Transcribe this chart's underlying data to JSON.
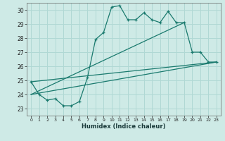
{
  "xlabel": "Humidex (Indice chaleur)",
  "bg_color": "#ceeae6",
  "grid_color": "#b0d8d4",
  "line_color": "#1a7a6e",
  "xlim": [
    -0.5,
    23.5
  ],
  "ylim": [
    22.5,
    30.5
  ],
  "xticks": [
    0,
    1,
    2,
    3,
    4,
    5,
    6,
    7,
    8,
    9,
    10,
    11,
    12,
    13,
    14,
    15,
    16,
    17,
    18,
    19,
    20,
    21,
    22,
    23
  ],
  "yticks": [
    23,
    24,
    25,
    26,
    27,
    28,
    29,
    30
  ],
  "series1_x": [
    0,
    1,
    2,
    3,
    4,
    5,
    6,
    7,
    8,
    9,
    10,
    11,
    12,
    13,
    14,
    15,
    16,
    17,
    18,
    19,
    20,
    21,
    22,
    23
  ],
  "series1_y": [
    24.9,
    24.0,
    23.6,
    23.7,
    23.2,
    23.2,
    23.5,
    25.2,
    27.9,
    28.4,
    30.2,
    30.3,
    29.3,
    29.3,
    29.8,
    29.3,
    29.1,
    29.9,
    29.1,
    29.1,
    27.0,
    27.0,
    26.3,
    26.3
  ],
  "series2_x": [
    0,
    23
  ],
  "series2_y": [
    24.0,
    26.3
  ],
  "series3_x": [
    0,
    23
  ],
  "series3_y": [
    24.9,
    26.3
  ],
  "series4_x": [
    0,
    19
  ],
  "series4_y": [
    24.0,
    29.1
  ]
}
